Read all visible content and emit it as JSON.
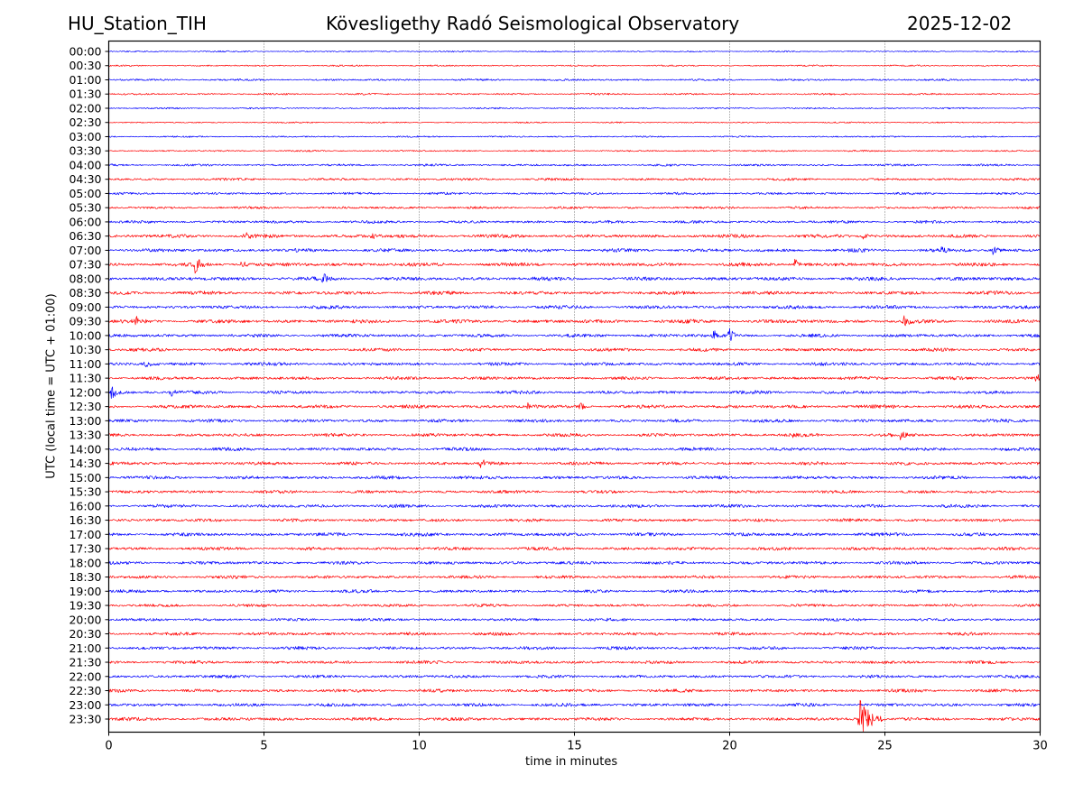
{
  "header": {
    "station": "HU_Station_TIH",
    "observatory": "Kövesligethy Radó Seismological Observatory",
    "date": "2025-12-02"
  },
  "chart_data": {
    "type": "line",
    "title": "Kövesligethy Radó Seismological Observatory",
    "xlabel": "time in minutes",
    "ylabel": "UTC (local time = UTC + 01:00)",
    "xlim": [
      0,
      30
    ],
    "x_ticks": [
      "0",
      "5",
      "10",
      "15",
      "20",
      "25",
      "30"
    ],
    "x_tick_values": [
      0,
      5,
      10,
      15,
      20,
      25,
      30
    ],
    "grid": "vertical dotted at x ticks",
    "series_colors": [
      "#0000ff",
      "#ff0000"
    ],
    "traces": [
      {
        "label": "00:00",
        "noise": 0.6
      },
      {
        "label": "00:30",
        "noise": 0.7
      },
      {
        "label": "01:00",
        "noise": 0.9
      },
      {
        "label": "01:30",
        "noise": 0.8
      },
      {
        "label": "02:00",
        "noise": 0.7
      },
      {
        "label": "02:30",
        "noise": 0.6
      },
      {
        "label": "03:00",
        "noise": 0.7
      },
      {
        "label": "03:30",
        "noise": 0.7
      },
      {
        "label": "04:00",
        "noise": 1.0
      },
      {
        "label": "04:30",
        "noise": 1.1
      },
      {
        "label": "05:00",
        "noise": 1.1
      },
      {
        "label": "05:30",
        "noise": 1.1
      },
      {
        "label": "06:00",
        "noise": 1.3
      },
      {
        "label": "06:30",
        "noise": 1.6
      },
      {
        "label": "07:00",
        "noise": 1.6
      },
      {
        "label": "07:30",
        "noise": 1.7
      },
      {
        "label": "08:00",
        "noise": 1.7
      },
      {
        "label": "08:30",
        "noise": 1.6
      },
      {
        "label": "09:00",
        "noise": 1.6
      },
      {
        "label": "09:30",
        "noise": 1.7
      },
      {
        "label": "10:00",
        "noise": 1.5
      },
      {
        "label": "10:30",
        "noise": 1.5
      },
      {
        "label": "11:00",
        "noise": 1.5
      },
      {
        "label": "11:30",
        "noise": 1.5
      },
      {
        "label": "12:00",
        "noise": 1.5
      },
      {
        "label": "12:30",
        "noise": 1.6
      },
      {
        "label": "13:00",
        "noise": 1.5
      },
      {
        "label": "13:30",
        "noise": 1.5
      },
      {
        "label": "14:00",
        "noise": 1.5
      },
      {
        "label": "14:30",
        "noise": 1.5
      },
      {
        "label": "15:00",
        "noise": 1.5
      },
      {
        "label": "15:30",
        "noise": 1.4
      },
      {
        "label": "16:00",
        "noise": 1.5
      },
      {
        "label": "16:30",
        "noise": 1.4
      },
      {
        "label": "17:00",
        "noise": 1.6
      },
      {
        "label": "17:30",
        "noise": 1.5
      },
      {
        "label": "18:00",
        "noise": 1.5
      },
      {
        "label": "18:30",
        "noise": 1.4
      },
      {
        "label": "19:00",
        "noise": 1.4
      },
      {
        "label": "19:30",
        "noise": 1.3
      },
      {
        "label": "20:00",
        "noise": 1.3
      },
      {
        "label": "20:30",
        "noise": 1.4
      },
      {
        "label": "21:00",
        "noise": 1.5
      },
      {
        "label": "21:30",
        "noise": 1.4
      },
      {
        "label": "22:00",
        "noise": 1.4
      },
      {
        "label": "22:30",
        "noise": 1.5
      },
      {
        "label": "23:00",
        "noise": 1.5
      },
      {
        "label": "23:30",
        "noise": 1.5
      }
    ],
    "events": [
      {
        "trace": "06:30",
        "minute": 4.4,
        "amp": 5
      },
      {
        "trace": "06:30",
        "minute": 8.5,
        "amp": 3
      },
      {
        "trace": "06:30",
        "minute": 24.3,
        "amp": 4
      },
      {
        "trace": "07:00",
        "minute": 26.8,
        "amp": 3
      },
      {
        "trace": "07:00",
        "minute": 28.5,
        "amp": 6
      },
      {
        "trace": "07:30",
        "minute": 2.8,
        "amp": 11
      },
      {
        "trace": "07:30",
        "minute": 4.3,
        "amp": 5
      },
      {
        "trace": "07:30",
        "minute": 22.1,
        "amp": 6
      },
      {
        "trace": "08:00",
        "minute": 6.9,
        "amp": 6
      },
      {
        "trace": "09:30",
        "minute": 0.9,
        "amp": 4
      },
      {
        "trace": "09:30",
        "minute": 25.6,
        "amp": 6
      },
      {
        "trace": "10:00",
        "minute": 19.5,
        "amp": 6
      },
      {
        "trace": "10:00",
        "minute": 20.0,
        "amp": 8
      },
      {
        "trace": "11:00",
        "minute": 1.2,
        "amp": 4
      },
      {
        "trace": "11:30",
        "minute": 29.9,
        "amp": 4
      },
      {
        "trace": "12:00",
        "minute": 0.1,
        "amp": 8
      },
      {
        "trace": "12:00",
        "minute": 2.0,
        "amp": 4
      },
      {
        "trace": "12:30",
        "minute": 13.5,
        "amp": 3
      },
      {
        "trace": "12:30",
        "minute": 15.2,
        "amp": 4
      },
      {
        "trace": "13:30",
        "minute": 22.0,
        "amp": 3
      },
      {
        "trace": "13:30",
        "minute": 25.5,
        "amp": 4
      },
      {
        "trace": "14:30",
        "minute": 12.0,
        "amp": 5
      },
      {
        "trace": "23:30",
        "minute": 24.2,
        "amp": 22
      }
    ]
  }
}
